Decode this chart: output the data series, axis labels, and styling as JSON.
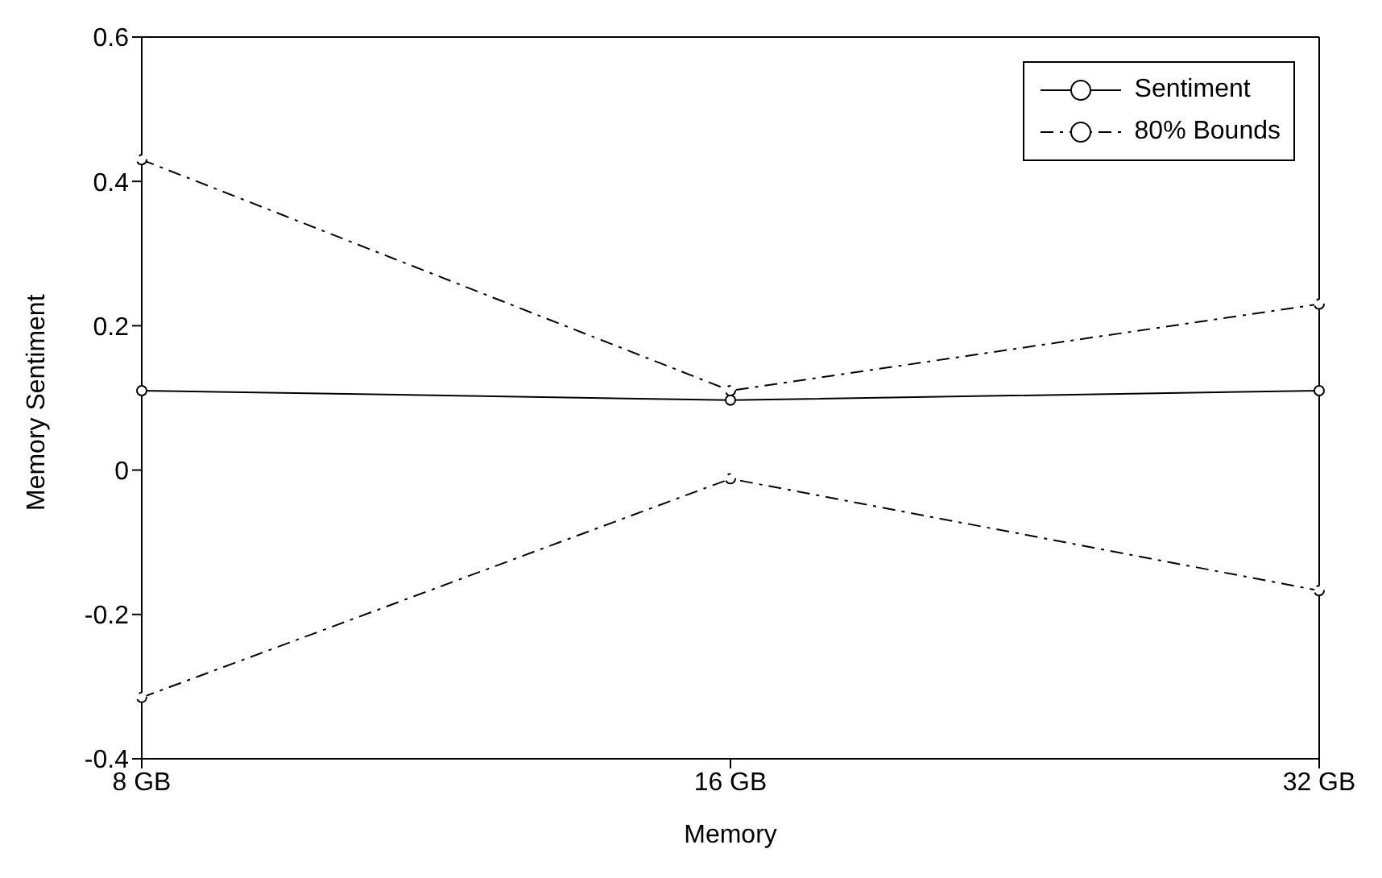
{
  "chart_data": {
    "type": "line",
    "xlabel": "Memory",
    "ylabel": "Memory Sentiment",
    "categories": [
      "8 GB",
      "16 GB",
      "32 GB"
    ],
    "series": [
      {
        "name": "Sentiment",
        "color": "#000000",
        "line_style": "solid",
        "values": [
          0.11,
          0.097,
          0.11
        ]
      },
      {
        "name": "80% Bounds",
        "color": "#000000",
        "line_style": "dashed",
        "values": [
          0.43,
          0.11,
          0.23
        ]
      },
      {
        "color": "#000000",
        "line_style": "dashed",
        "values": [
          -0.315,
          -0.012,
          -0.167
        ]
      }
    ],
    "ylim": [
      -0.4,
      0.6
    ],
    "yticks": [
      -0.4,
      -0.2,
      0,
      0.2,
      0.4,
      0.6
    ],
    "marker": "circle",
    "grid": false,
    "legend": "top right"
  }
}
